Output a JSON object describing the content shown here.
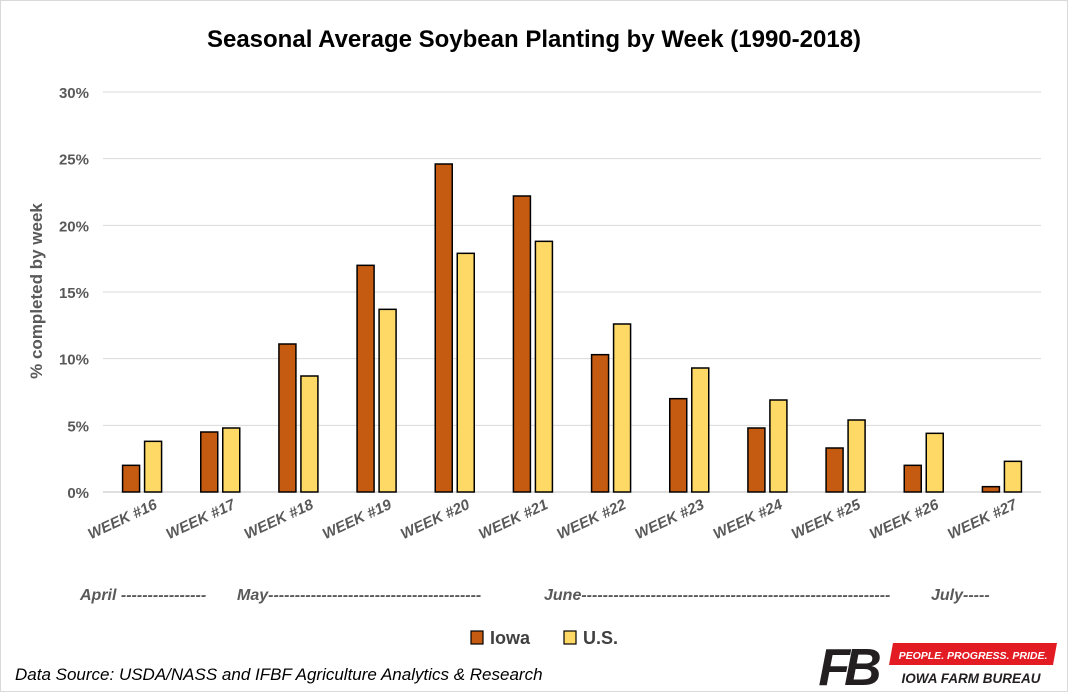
{
  "chart_data": {
    "type": "bar",
    "title": "Seasonal Average Soybean Planting by Week (1990-2018)",
    "xlabel": "",
    "ylabel": "% completed by week",
    "ylim": [
      0,
      30
    ],
    "yticks": [
      "0%",
      "5%",
      "10%",
      "15%",
      "20%",
      "25%",
      "30%"
    ],
    "grid": true,
    "legend_position": "bottom",
    "categories": [
      "WEEK #16",
      "WEEK #17",
      "WEEK #18",
      "WEEK #19",
      "WEEK #20",
      "WEEK #21",
      "WEEK #22",
      "WEEK #23",
      "WEEK #24",
      "WEEK #25",
      "WEEK #26",
      "WEEK #27"
    ],
    "series": [
      {
        "name": "Iowa",
        "color": "#c55a11",
        "values": [
          2.0,
          4.5,
          11.1,
          17.0,
          24.6,
          22.2,
          10.3,
          7.0,
          4.8,
          3.3,
          2.0,
          0.4
        ]
      },
      {
        "name": "U.S.",
        "color": "#ffd966",
        "values": [
          3.8,
          4.8,
          8.7,
          13.7,
          17.9,
          18.8,
          12.6,
          9.3,
          6.9,
          5.4,
          4.4,
          2.3
        ]
      }
    ],
    "month_labels": [
      {
        "text": "April ----------------"
      },
      {
        "text": "May----------------------------------------"
      },
      {
        "text": "June----------------------------------------------------------"
      },
      {
        "text": "July-----"
      }
    ]
  },
  "footer": {
    "source": "Data Source: USDA/NASS and IFBF Agriculture Analytics & Research",
    "logo_mark": "FB",
    "logo_tagline": "PEOPLE. PROGRESS. PRIDE.",
    "logo_name": "IOWA FARM BUREAU"
  }
}
